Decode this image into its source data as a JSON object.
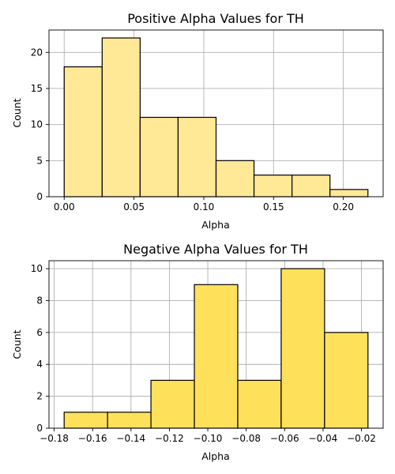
{
  "chart_data": [
    {
      "type": "bar",
      "title": "Positive Alpha Values for TH",
      "xlabel": "Alpha",
      "ylabel": "Count",
      "bin_edges": [
        0.0,
        0.0272,
        0.0544,
        0.0816,
        0.1088,
        0.136,
        0.1632,
        0.1904,
        0.2176
      ],
      "values": [
        18,
        22,
        11,
        11,
        5,
        3,
        3,
        1
      ],
      "xlim": [
        -0.0109,
        0.2285
      ],
      "ylim": [
        0,
        23.1
      ],
      "xticks": [
        0.0,
        0.05,
        0.1,
        0.15,
        0.2
      ],
      "xtick_labels": [
        "0.00",
        "0.05",
        "0.10",
        "0.15",
        "0.20"
      ],
      "yticks": [
        0,
        5,
        10,
        15,
        20
      ],
      "ytick_labels": [
        "0",
        "5",
        "10",
        "15",
        "20"
      ],
      "bar_color": "#ffe896",
      "grid": true
    },
    {
      "type": "bar",
      "title": "Negative Alpha Values for TH",
      "xlabel": "Alpha",
      "ylabel": "Count",
      "bin_edges": [
        -0.1748,
        -0.1522,
        -0.1296,
        -0.107,
        -0.0844,
        -0.0618,
        -0.0392,
        -0.0166
      ],
      "values": [
        1,
        1,
        3,
        9,
        3,
        10,
        6
      ],
      "xlim": [
        -0.1827,
        -0.0087
      ],
      "ylim": [
        0,
        10.5
      ],
      "xticks": [
        -0.18,
        -0.16,
        -0.14,
        -0.12,
        -0.1,
        -0.08,
        -0.06,
        -0.04,
        -0.02
      ],
      "xtick_labels": [
        "−0.18",
        "−0.16",
        "−0.14",
        "−0.12",
        "−0.10",
        "−0.08",
        "−0.06",
        "−0.04",
        "−0.02"
      ],
      "yticks": [
        0,
        2,
        4,
        6,
        8,
        10
      ],
      "ytick_labels": [
        "0",
        "2",
        "4",
        "6",
        "8",
        "10"
      ],
      "bar_color": "#ffe05a",
      "grid": true
    }
  ]
}
